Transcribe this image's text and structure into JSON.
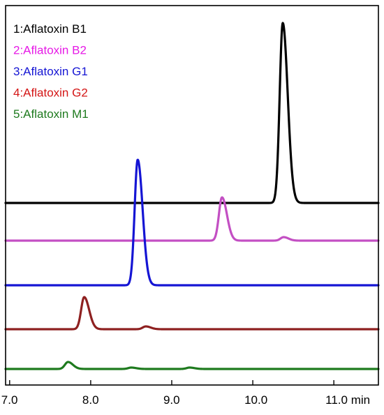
{
  "chart_data": {
    "type": "line",
    "xlim": [
      6.95,
      11.55
    ],
    "x_unit": "min",
    "x_ticks": [
      7.0,
      8.0,
      9.0,
      10.0,
      11.0
    ],
    "x_tick_labels": [
      "7.0",
      "8.0",
      "9.0",
      "10.0",
      "11.0 min"
    ],
    "legend": "top-left",
    "grid": false,
    "series": [
      {
        "name": "1:Aflatoxin B1",
        "color": "#000000",
        "baseline": 0,
        "peaks": [
          {
            "rt": 10.37,
            "height": 258
          }
        ]
      },
      {
        "name": "2:Aflatoxin B2",
        "color": "#e619e6",
        "trace_color": "#c34fc3",
        "baseline": 0,
        "peaks": [
          {
            "rt": 9.62,
            "height": 62
          },
          {
            "rt": 10.38,
            "height": 5
          }
        ]
      },
      {
        "name": "3:Aflatoxin G1",
        "color": "#1515d4",
        "baseline": 0,
        "peaks": [
          {
            "rt": 8.58,
            "height": 180
          }
        ]
      },
      {
        "name": "4:Aflatoxin G2",
        "color": "#d41515",
        "trace_color": "#8e2020",
        "baseline": 0,
        "peaks": [
          {
            "rt": 7.92,
            "height": 46
          },
          {
            "rt": 8.68,
            "height": 4
          }
        ]
      },
      {
        "name": "5:Aflatoxin M1",
        "color": "#1e7a1e",
        "baseline": 0,
        "peaks": [
          {
            "rt": 7.72,
            "height": 10
          },
          {
            "rt": 8.5,
            "height": 2
          },
          {
            "rt": 9.22,
            "height": 2
          }
        ]
      }
    ]
  }
}
